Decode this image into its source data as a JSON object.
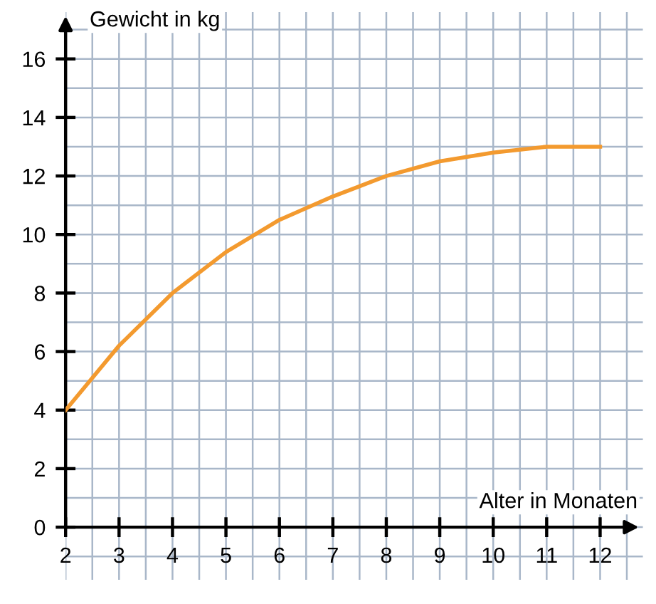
{
  "chart_data": {
    "type": "line",
    "xlabel": "Alter in Monaten",
    "ylabel": "Gewicht in kg",
    "x": [
      2,
      3,
      4,
      5,
      6,
      7,
      8,
      9,
      10,
      11,
      12
    ],
    "series": [
      {
        "color": "#f39a2f",
        "values": [
          4,
          6.2,
          8.0,
          9.4,
          10.5,
          11.3,
          12.0,
          12.5,
          12.8,
          13.0,
          13.0
        ]
      }
    ],
    "xlim": [
      2,
      12.8
    ],
    "ylim": [
      -1.8,
      17.6
    ],
    "xticks": [
      2,
      3,
      4,
      5,
      6,
      7,
      8,
      9,
      10,
      11,
      12
    ],
    "yticks": [
      0,
      2,
      4,
      6,
      8,
      10,
      12,
      14,
      16
    ],
    "grid": true,
    "marker": "none",
    "line_style": "solid",
    "legend": false
  }
}
